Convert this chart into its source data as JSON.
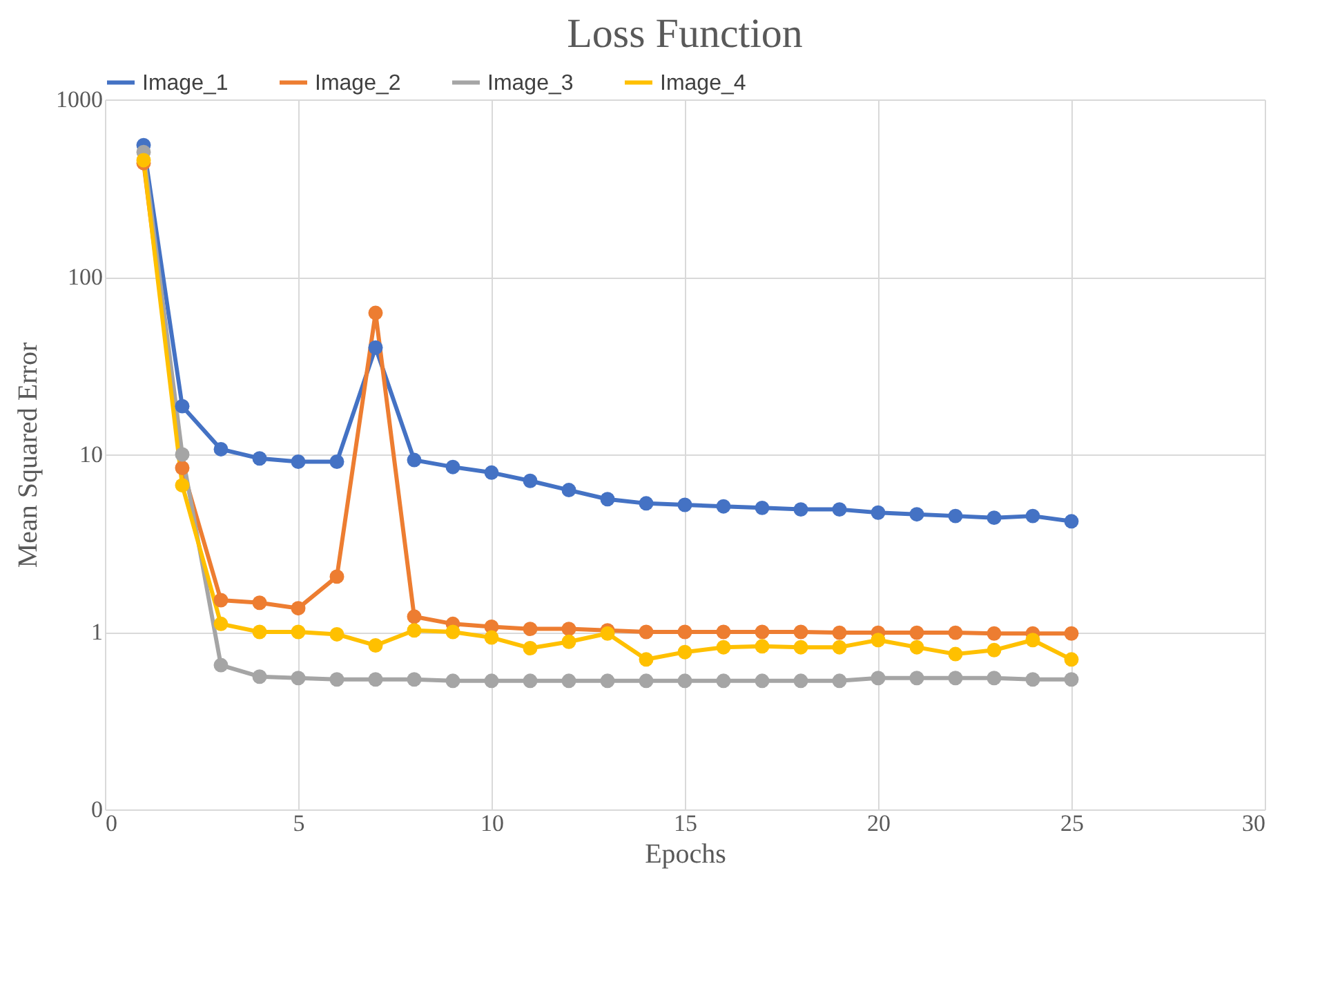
{
  "chart_data": {
    "type": "line",
    "title": "Loss Function",
    "xlabel": "Epochs",
    "ylabel": "Mean Squared Error",
    "x": [
      1,
      2,
      3,
      4,
      5,
      6,
      7,
      8,
      9,
      10,
      11,
      12,
      13,
      14,
      15,
      16,
      17,
      18,
      19,
      20,
      21,
      22,
      23,
      24,
      25
    ],
    "series": [
      {
        "name": "Image_1",
        "color": "#4472c4",
        "values": [
          553,
          18.7,
          10.7,
          9.5,
          9.1,
          9.1,
          40,
          9.3,
          8.5,
          7.9,
          7.1,
          6.3,
          5.6,
          5.3,
          5.2,
          5.1,
          5.0,
          4.9,
          4.9,
          4.7,
          4.6,
          4.5,
          4.4,
          4.5,
          4.2
        ]
      },
      {
        "name": "Image_2",
        "color": "#ed7d31",
        "values": [
          438,
          8.4,
          1.51,
          1.46,
          1.36,
          2.05,
          62.7,
          1.22,
          1.11,
          1.07,
          1.04,
          1.04,
          1.02,
          1.0,
          1.0,
          1.0,
          1.0,
          1.0,
          0.99,
          0.99,
          0.99,
          0.99,
          0.98,
          0.98,
          0.98
        ]
      },
      {
        "name": "Image_3",
        "color": "#a5a5a5",
        "values": [
          505,
          10,
          0.65,
          0.56,
          0.55,
          0.54,
          0.54,
          0.54,
          0.53,
          0.53,
          0.53,
          0.53,
          0.53,
          0.53,
          0.53,
          0.53,
          0.53,
          0.53,
          0.53,
          0.55,
          0.55,
          0.55,
          0.55,
          0.54,
          0.54
        ]
      },
      {
        "name": "Image_4",
        "color": "#ffc000",
        "values": [
          455,
          6.7,
          1.11,
          1.0,
          1.0,
          0.97,
          0.84,
          1.02,
          1.0,
          0.93,
          0.81,
          0.88,
          0.98,
          0.7,
          0.77,
          0.82,
          0.83,
          0.82,
          0.82,
          0.9,
          0.82,
          0.75,
          0.79,
          0.9,
          0.7
        ]
      }
    ],
    "xlim": [
      0,
      30
    ],
    "xticks": [
      0,
      5,
      10,
      15,
      20,
      25,
      30
    ],
    "ylim": [
      0.1,
      1000
    ],
    "yticks": [
      {
        "value": 0.1,
        "label": "0"
      },
      1,
      10,
      100,
      1000
    ],
    "log": "y",
    "grid": true,
    "legend": "top",
    "marker": "circle",
    "line_style": "solid"
  }
}
